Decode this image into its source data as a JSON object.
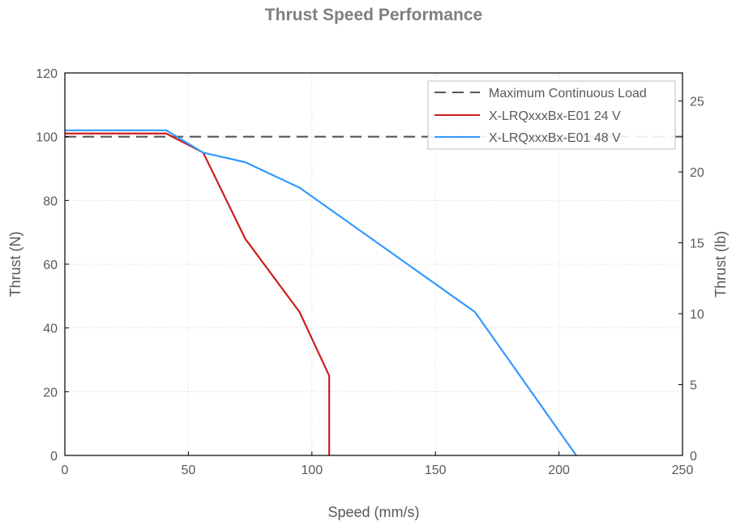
{
  "chart_data": {
    "type": "line",
    "title": "Thrust Speed Performance",
    "xlabel": "Speed (mm/s)",
    "ylabel": "Thrust (N)",
    "y2label": "Thrust (lb)",
    "xlim": [
      0,
      250
    ],
    "ylim": [
      0,
      120
    ],
    "y2lim": [
      0,
      26.98
    ],
    "xticks": [
      0,
      50,
      100,
      150,
      200,
      250
    ],
    "yticks": [
      0,
      20,
      40,
      60,
      80,
      100,
      120
    ],
    "y2ticks": [
      0,
      5,
      10,
      15,
      20,
      25
    ],
    "grid": true,
    "legend_position": "top-right",
    "series": [
      {
        "name": "Maximum Continuous Load",
        "color": "#555555",
        "style": "dashed",
        "x": [
          0,
          250
        ],
        "y": [
          100,
          100
        ]
      },
      {
        "name": "X-LRQxxxBx-E01 24 V",
        "color": "#cc1f1f",
        "style": "solid",
        "x": [
          0,
          41,
          56,
          73,
          95,
          107,
          107
        ],
        "y": [
          101,
          101,
          95,
          68,
          45,
          25,
          0
        ]
      },
      {
        "name": "X-LRQxxxBx-E01 48 V",
        "color": "#3399ff",
        "style": "solid",
        "x": [
          0,
          41,
          56,
          73,
          95,
          166,
          207
        ],
        "y": [
          102,
          102,
          95,
          92,
          84,
          45,
          0
        ]
      }
    ]
  }
}
